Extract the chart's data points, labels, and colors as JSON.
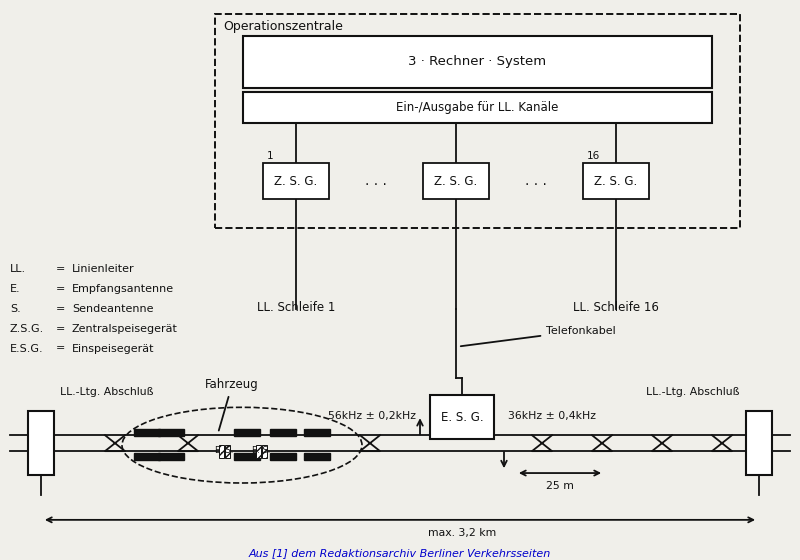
{
  "bg_color": "#f0efea",
  "text_color": "#111111",
  "operationszentrale_label": "Operationszentrale",
  "rechner_label": "3 · Rechner · System",
  "eingabe_label": "Ein-/Ausgabe für LL. Kanäle",
  "zsg_labels": [
    "Z. S. G.",
    "Z. S. G.",
    "Z. S. G."
  ],
  "zsg_numbers": [
    "1",
    "",
    "16"
  ],
  "ll_schleife_1": "LL. Schleife 1",
  "ll_schleife_16": "LL. Schleife 16",
  "telefonkabel": "Telefonkabel",
  "esg_label": "E. S. G.",
  "freq_left": "56kHz ± 0,2kHz",
  "freq_right": "36kHz ± 0,4kHz",
  "fahrzeug": "Fahrzeug",
  "abschluss": "LL.-Ltg. Abschluß",
  "dim_25m": "25 m",
  "dim_km": "max. 3,2 km",
  "legend": [
    [
      "LL.",
      "=",
      "Linienleiter"
    ],
    [
      "E.",
      "=",
      "Empfangsantenne"
    ],
    [
      "S.",
      "=",
      "Sendeantenne"
    ],
    [
      "Z.S.G.",
      "=",
      "Zentralspeisegerät"
    ],
    [
      "E.S.G.",
      "=",
      "Einspeisegerät"
    ]
  ],
  "caption": "Aus [1] dem Redaktionsarchiv Berliner Verkehrsseiten"
}
